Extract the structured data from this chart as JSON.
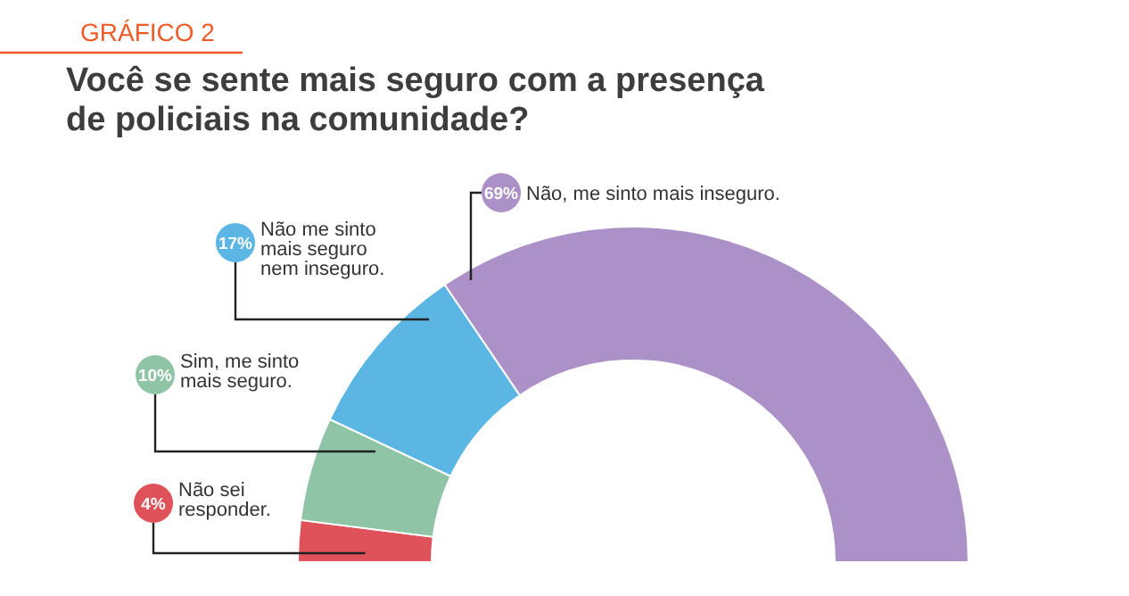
{
  "chart_data": {
    "type": "donut",
    "title": "GRÁFICO 2",
    "subtitle": "Você se sente mais seguro com a presença de policiais na comunidade?",
    "categories": [
      "Não sei responder.",
      "Sim, me sinto mais seguro.",
      "Não me sinto mais seguro nem inseguro.",
      "Não, me sinto mais inseguro."
    ],
    "values": [
      4,
      10,
      17,
      69
    ],
    "value_labels": [
      "4%",
      "10%",
      "17%",
      "69%"
    ],
    "colors": [
      "#e0525a",
      "#8fc4a6",
      "#5cb6e4",
      "#ab91c7"
    ],
    "legend": "top left"
  }
}
